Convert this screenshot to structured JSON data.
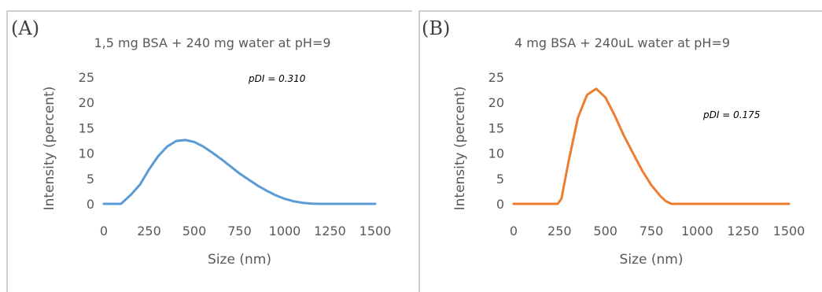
{
  "chart_data": [
    {
      "panel_label": "(A)",
      "type": "line",
      "title": "1,5 mg BSA + 240 mg water at pH=9",
      "xlabel": "Size (nm)",
      "ylabel": "Intensity (percent)",
      "xlim": [
        0,
        1500
      ],
      "ylim": [
        0,
        25
      ],
      "xticks": [
        "0",
        "250",
        "500",
        "750",
        "1000",
        "1250",
        "1500"
      ],
      "yticks": [
        "0",
        "5",
        "10",
        "15",
        "20",
        "25"
      ],
      "grid": false,
      "annotation": "pDI = 0.310",
      "color": "#5b9bd5",
      "series": [
        {
          "x": [
            0,
            50,
            95,
            150,
            200,
            250,
            300,
            350,
            400,
            450,
            500,
            550,
            600,
            650,
            700,
            750,
            800,
            850,
            900,
            950,
            1000,
            1050,
            1100,
            1150,
            1200,
            1250,
            1300,
            1400,
            1500
          ],
          "values": [
            0,
            0,
            0,
            1.8,
            3.8,
            6.8,
            9.4,
            11.3,
            12.4,
            12.6,
            12.2,
            11.3,
            10.1,
            8.8,
            7.4,
            6.0,
            4.8,
            3.6,
            2.6,
            1.7,
            1.0,
            0.5,
            0.2,
            0.05,
            0,
            0,
            0,
            0,
            0
          ]
        }
      ]
    },
    {
      "panel_label": "(B)",
      "type": "line",
      "title": "4 mg BSA + 240uL water at pH=9",
      "xlabel": "Size (nm)",
      "ylabel": "Intensity (percent)",
      "xlim": [
        0,
        1500
      ],
      "ylim": [
        0,
        25
      ],
      "xticks": [
        "0",
        "250",
        "500",
        "750",
        "1000",
        "1250",
        "1500"
      ],
      "yticks": [
        "0",
        "5",
        "10",
        "15",
        "20",
        "25"
      ],
      "grid": false,
      "annotation": "pDI = 0.175",
      "color": "#ed7d31",
      "series": [
        {
          "x": [
            0,
            100,
            200,
            240,
            260,
            300,
            350,
            400,
            450,
            500,
            550,
            600,
            650,
            700,
            750,
            800,
            830,
            860,
            900,
            1000,
            1250,
            1500
          ],
          "values": [
            0,
            0,
            0,
            0,
            1.0,
            8.5,
            17.0,
            21.5,
            22.7,
            21.0,
            17.5,
            13.5,
            10.0,
            6.6,
            3.7,
            1.5,
            0.5,
            0,
            0,
            0,
            0,
            0
          ]
        }
      ]
    }
  ]
}
